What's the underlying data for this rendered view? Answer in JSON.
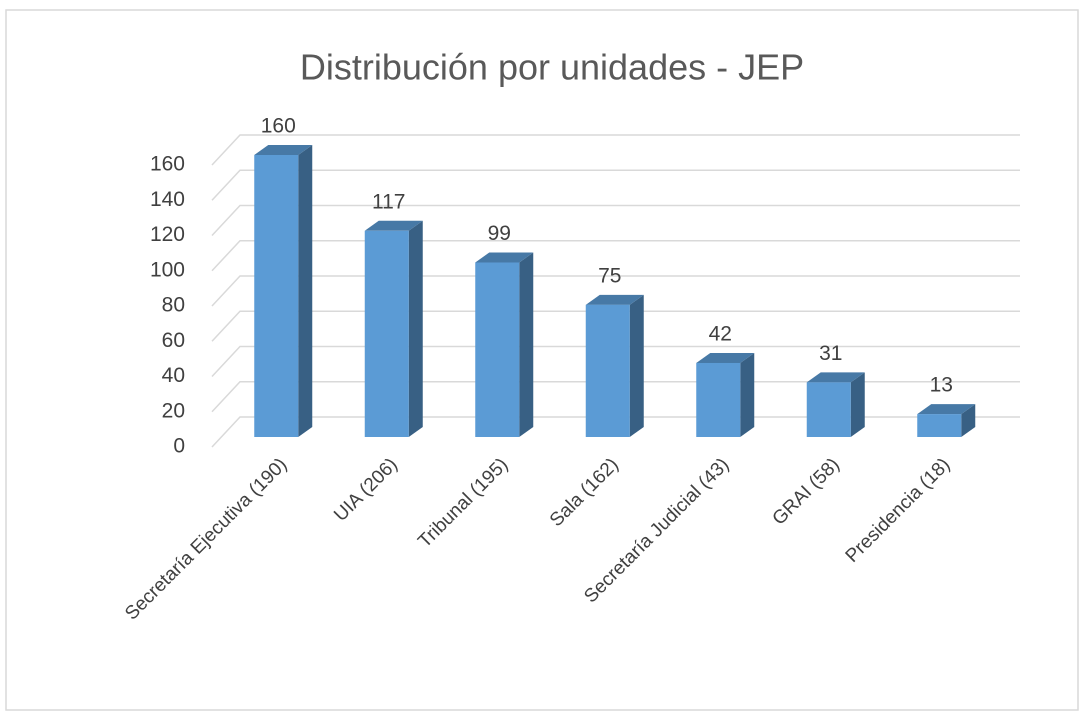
{
  "chart_data": {
    "type": "bar3d",
    "title": "Distribución por unidades - JEP",
    "categories": [
      "Secretaría Ejecutiva (190)",
      "UIA (206)",
      "Tribunal (195)",
      "Sala (162)",
      "Secretaría Judicial (43)",
      "GRAI (58)",
      "Presidencia (18)"
    ],
    "values": [
      160,
      117,
      99,
      75,
      42,
      31,
      13
    ],
    "color": "#5b9bd5",
    "ylim": [
      0,
      160
    ],
    "yticks": [
      0,
      20,
      40,
      60,
      80,
      100,
      120,
      140,
      160
    ],
    "grid": true
  }
}
